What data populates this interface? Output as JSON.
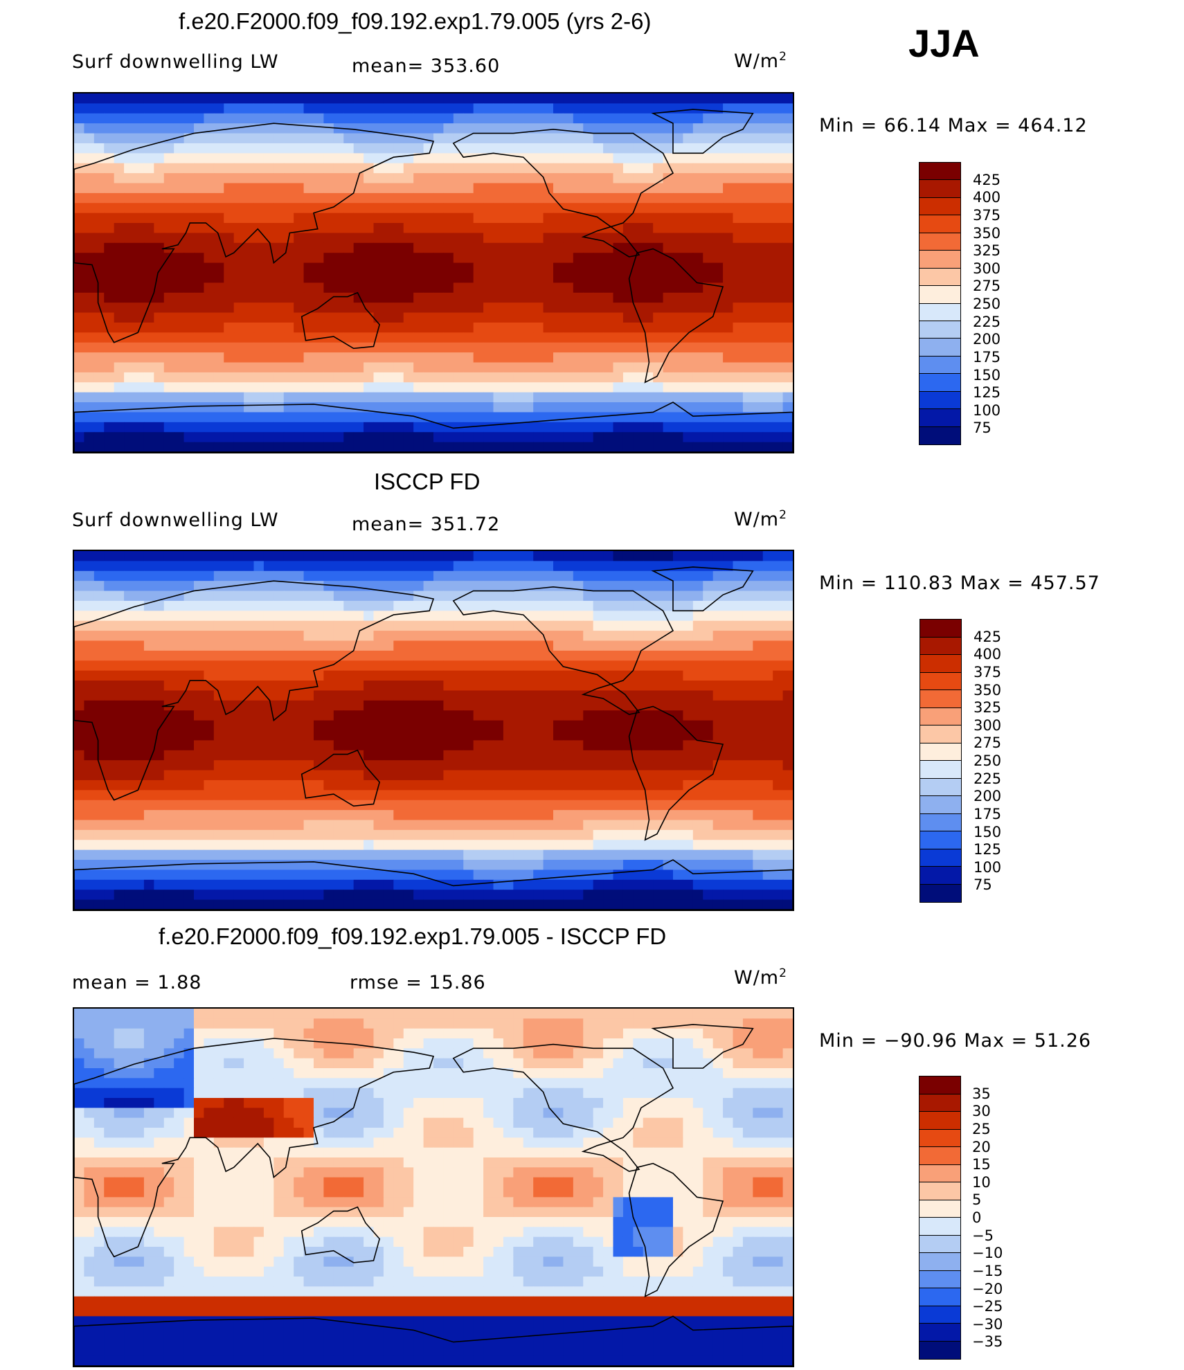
{
  "season": "JJA",
  "units_label": "W/m",
  "units_sup": "2",
  "panels": [
    {
      "title": "f.e20.F2000.f09_f09.192.exp1.79.005 (yrs 2-6)",
      "left_label": "Surf downwelling LW",
      "center_label": "mean= 353.60",
      "minmax": "Min =   66.14 Max = 464.12",
      "colorbar_labels": [
        "425",
        "400",
        "375",
        "350",
        "325",
        "300",
        "275",
        "250",
        "225",
        "200",
        "175",
        "150",
        "125",
        "100",
        "75"
      ],
      "map_variant": "model"
    },
    {
      "title": "ISCCP FD",
      "left_label": "Surf downwelling LW",
      "center_label": "mean= 351.72",
      "minmax": "Min = 110.83 Max = 457.57",
      "colorbar_labels": [
        "425",
        "400",
        "375",
        "350",
        "325",
        "300",
        "275",
        "250",
        "225",
        "200",
        "175",
        "150",
        "125",
        "100",
        "75"
      ],
      "map_variant": "obs"
    },
    {
      "title": "f.e20.F2000.f09_f09.192.exp1.79.005 - ISCCP FD",
      "left_label": "mean =    1.88",
      "center_label": "rmse =   15.86",
      "minmax": "Min = −90.96 Max =   51.26",
      "colorbar_labels": [
        "35",
        "30",
        "25",
        "20",
        "15",
        "10",
        "5",
        "0",
        "−5",
        "−10",
        "−15",
        "−20",
        "−25",
        "−30",
        "−35"
      ],
      "map_variant": "diff"
    }
  ],
  "colors": {
    "abs_scale": [
      "#7a0000",
      "#a81800",
      "#cc2e00",
      "#e64a12",
      "#f26a36",
      "#f9a078",
      "#fcc7a6",
      "#feeedd",
      "#d8e8fa",
      "#b4cdf3",
      "#8eb0ef",
      "#5e8ef0",
      "#2c68f0",
      "#0a3ad6",
      "#0318a8",
      "#000d7a"
    ],
    "diff_scale": [
      "#7a0000",
      "#a81800",
      "#cc2e00",
      "#e64a12",
      "#f26a36",
      "#f9a078",
      "#fcc7a6",
      "#feeedd",
      "#d8e8fa",
      "#b4cdf3",
      "#8eb0ef",
      "#5e8ef0",
      "#2c68f0",
      "#0a3ad6",
      "#0318a8",
      "#000d7a"
    ]
  }
}
